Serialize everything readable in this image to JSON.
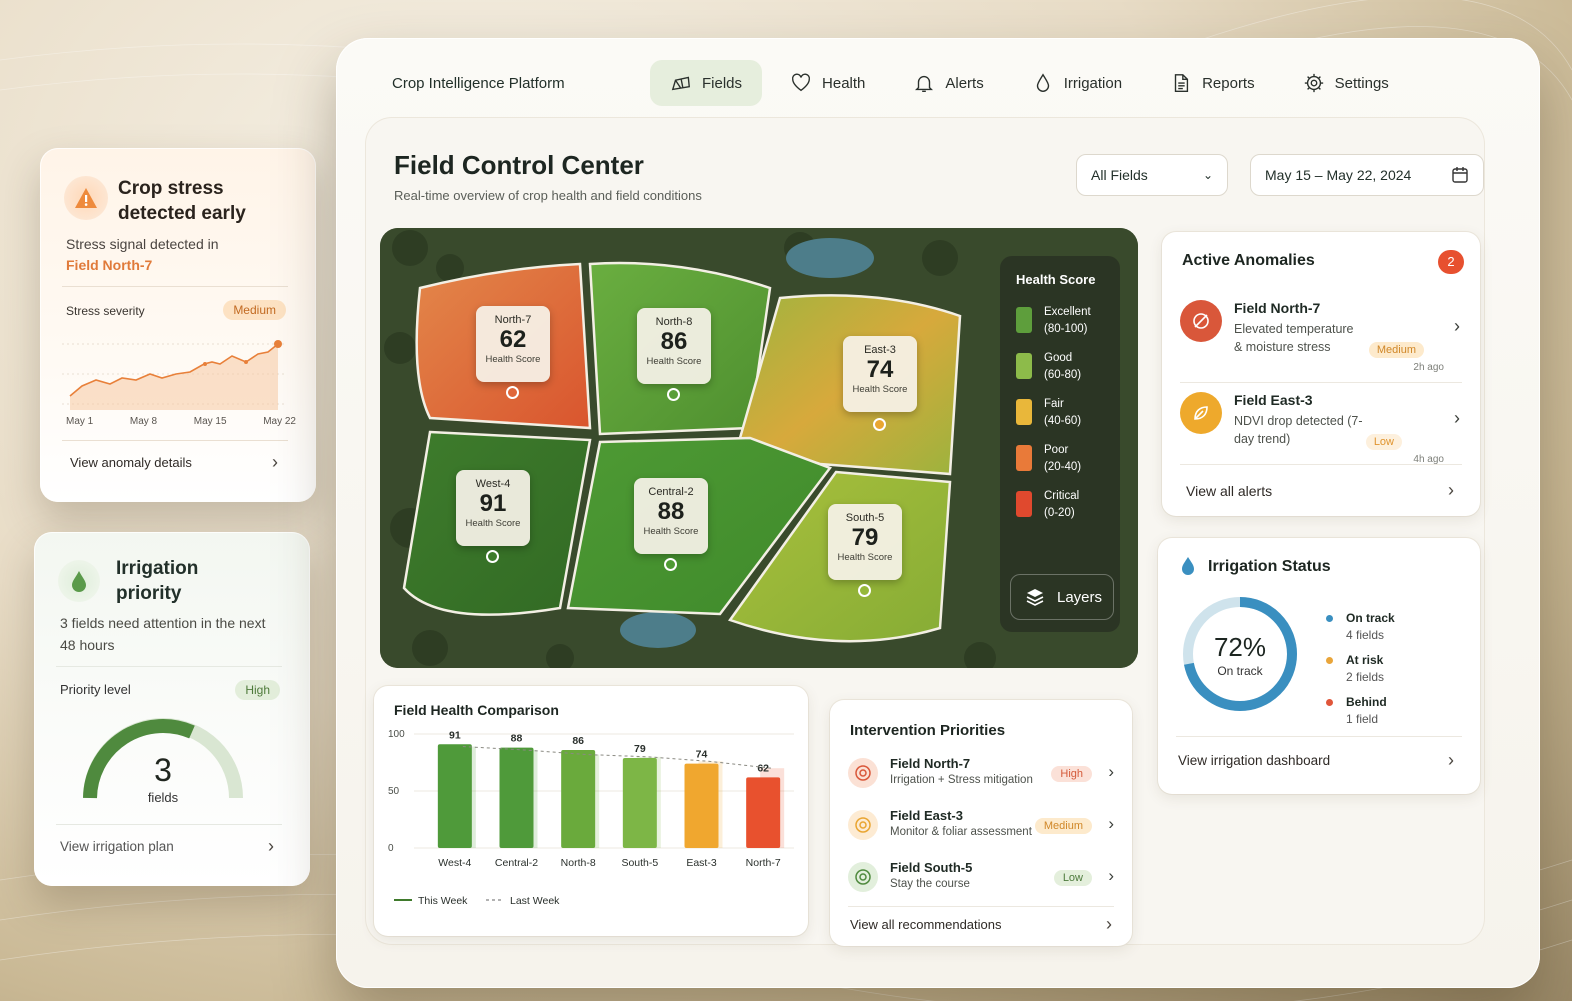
{
  "stress_card": {
    "title_line1": "Crop stress",
    "title_line2": "detected early",
    "subtitle": "Stress signal detected in",
    "field": "Field North-7",
    "severity_label": "Stress severity",
    "severity_value": "Medium",
    "chart_x_labels": [
      "May 1",
      "May 8",
      "May 15",
      "May 22"
    ],
    "link": "View anomaly details"
  },
  "irrigation_card": {
    "title_line1": "Irrigation",
    "title_line2": "priority",
    "subtitle": "3 fields need attention in the next 48 hours",
    "priority_label": "Priority level",
    "priority_value": "High",
    "gauge_value": "3",
    "gauge_unit": "fields",
    "link": "View irrigation plan"
  },
  "topbar": {
    "brand": "Crop Intelligence Platform",
    "nav": [
      "Fields",
      "Health",
      "Alerts",
      "Irrigation",
      "Reports",
      "Settings"
    ]
  },
  "header": {
    "title": "Field Control Center",
    "subtitle": "Real-time overview of crop health and field conditions",
    "field_select": "All Fields",
    "date_range": "May 15 – May 22, 2024"
  },
  "map": {
    "fields": [
      {
        "name": "North-7",
        "score": "62",
        "label": "Health Score"
      },
      {
        "name": "North-8",
        "score": "86",
        "label": "Health Score"
      },
      {
        "name": "East-3",
        "score": "74",
        "label": "Health Score"
      },
      {
        "name": "West-4",
        "score": "91",
        "label": "Health Score"
      },
      {
        "name": "Central-2",
        "score": "88",
        "label": "Health Score"
      },
      {
        "name": "South-5",
        "score": "79",
        "label": "Health Score"
      }
    ],
    "legend_title": "Health Score",
    "legend": [
      {
        "label": "Excellent",
        "range": "(80-100)",
        "color": "#5e9e3c"
      },
      {
        "label": "Good",
        "range": "(60-80)",
        "color": "#8dbb4a"
      },
      {
        "label": "Fair",
        "range": "(40-60)",
        "color": "#e9b73a"
      },
      {
        "label": "Poor",
        "range": "(20-40)",
        "color": "#e97a39"
      },
      {
        "label": "Critical",
        "range": "(0-20)",
        "color": "#e0492e"
      }
    ],
    "layers_button": "Layers"
  },
  "anomalies": {
    "title": "Active Anomalies",
    "count": "2",
    "items": [
      {
        "name": "Field North-7",
        "desc": "Elevated temperature & moisture stress",
        "severity": "Medium",
        "time": "2h ago"
      },
      {
        "name": "Field East-3",
        "desc": "NDVI drop detected (7-day trend)",
        "severity": "Low",
        "time": "4h ago"
      }
    ],
    "link": "View all alerts"
  },
  "irrigation_status": {
    "title": "Irrigation Status",
    "percent": "72%",
    "percent_label": "On track",
    "legend": [
      {
        "label": "On track",
        "value": "4 fields",
        "color": "#3a8fc0"
      },
      {
        "label": "At risk",
        "value": "2 fields",
        "color": "#e9a53a"
      },
      {
        "label": "Behind",
        "value": "1 field",
        "color": "#e0563a"
      }
    ],
    "link": "View irrigation dashboard"
  },
  "intervention": {
    "title": "Intervention Priorities",
    "items": [
      {
        "name": "Field North-7",
        "desc": "Irrigation + Stress mitigation",
        "priority": "High"
      },
      {
        "name": "Field East-3",
        "desc": "Monitor & foliar assessment",
        "priority": "Medium"
      },
      {
        "name": "Field South-5",
        "desc": "Stay the course",
        "priority": "Low"
      }
    ],
    "link": "View all recommendations"
  },
  "chart_data": {
    "type": "bar",
    "title": "Field Health Comparison",
    "categories": [
      "West-4",
      "Central-2",
      "North-8",
      "South-5",
      "East-3",
      "North-7"
    ],
    "series": [
      {
        "name": "This Week",
        "values": [
          91,
          88,
          86,
          79,
          74,
          62
        ]
      },
      {
        "name": "Last Week",
        "values": [
          89,
          86,
          82,
          80,
          76,
          70
        ]
      }
    ],
    "ylim": [
      0,
      100
    ],
    "yticks": [
      "0",
      "50",
      "100"
    ],
    "colors": [
      "#4f9a3a",
      "#4f9a3a",
      "#6aaa3c",
      "#7db646",
      "#f0a72f",
      "#e8512e"
    ],
    "legend": "bottom-left"
  }
}
